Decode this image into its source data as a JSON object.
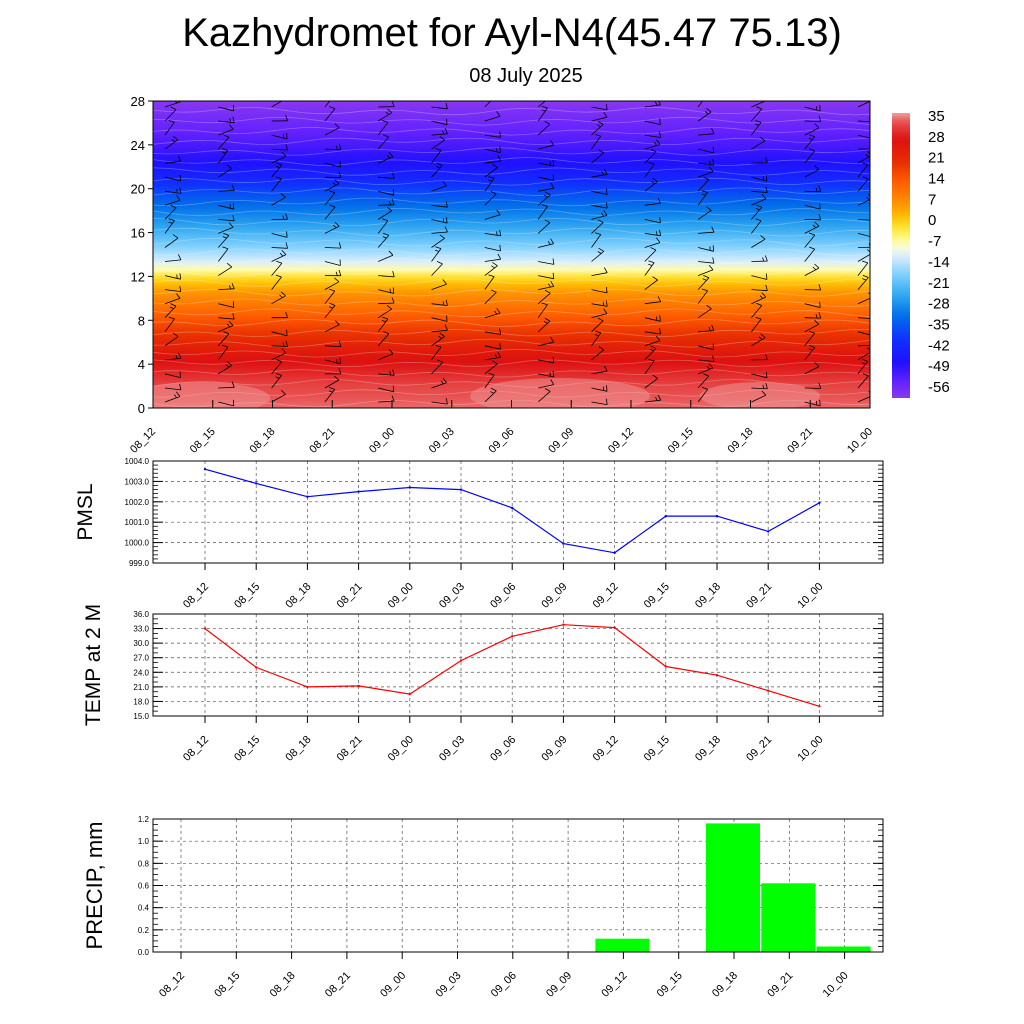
{
  "title": "Kazhydromet for Ayl-N4(45.47 75.13)",
  "subtitle": "08 July 2025",
  "chart_data": [
    {
      "type": "heatmap",
      "name": "cross-section",
      "title": "",
      "xlabel": "",
      "ylabel": "",
      "x_labels": [
        "08_12",
        "08_15",
        "08_18",
        "08_21",
        "09_00",
        "09_03",
        "09_06",
        "09_09",
        "09_12",
        "09_15",
        "09_18",
        "09_21",
        "10_00"
      ],
      "y_ticks": [
        0,
        4,
        8,
        12,
        16,
        20,
        24,
        28
      ],
      "ylim": [
        0,
        28
      ],
      "colorbar": {
        "labels": [
          "35",
          "28",
          "21",
          "14",
          "7",
          "0",
          "-7",
          "-14",
          "-21",
          "-28",
          "-35",
          "-42",
          "-49",
          "-56"
        ],
        "range": [
          -60,
          37
        ],
        "stops": [
          {
            "v": 37,
            "c": "#f0a0a0"
          },
          {
            "v": 34,
            "c": "#e85050"
          },
          {
            "v": 28,
            "c": "#dd1010"
          },
          {
            "v": 20,
            "c": "#e83000"
          },
          {
            "v": 14,
            "c": "#ff5a00"
          },
          {
            "v": 7,
            "c": "#ff8c00"
          },
          {
            "v": 2,
            "c": "#ffbb00"
          },
          {
            "v": -3,
            "c": "#ffee40"
          },
          {
            "v": -8,
            "c": "#ffffd0"
          },
          {
            "v": -12,
            "c": "#d8ecff"
          },
          {
            "v": -18,
            "c": "#80d0ff"
          },
          {
            "v": -25,
            "c": "#30a8f0"
          },
          {
            "v": -32,
            "c": "#0070e8"
          },
          {
            "v": -40,
            "c": "#1030ff"
          },
          {
            "v": -48,
            "c": "#2010ff"
          },
          {
            "v": -54,
            "c": "#6020ff"
          },
          {
            "v": -60,
            "c": "#8838f0"
          }
        ]
      },
      "level_temperature": [
        {
          "level": 0,
          "value": 35
        },
        {
          "level": 2,
          "value": 33
        },
        {
          "level": 5,
          "value": 26
        },
        {
          "level": 8,
          "value": 15
        },
        {
          "level": 10.5,
          "value": 6
        },
        {
          "level": 12,
          "value": -2
        },
        {
          "level": 13,
          "value": -10
        },
        {
          "level": 14.5,
          "value": -17
        },
        {
          "level": 17,
          "value": -27
        },
        {
          "level": 19.5,
          "value": -36
        },
        {
          "level": 21.5,
          "value": -45
        },
        {
          "level": 24,
          "value": -52
        },
        {
          "level": 28,
          "value": -60
        }
      ],
      "wind_barbs": "present"
    },
    {
      "type": "line",
      "name": "pmsl",
      "title": "",
      "xlabel": "",
      "ylabel": "PMSL",
      "categories": [
        "08_12",
        "08_15",
        "08_18",
        "08_21",
        "09_00",
        "09_03",
        "09_06",
        "09_09",
        "09_12",
        "09_15",
        "09_18",
        "09_21",
        "10_00"
      ],
      "values": [
        1003.6,
        1002.9,
        1002.25,
        1002.5,
        1002.7,
        1002.6,
        1001.7,
        999.95,
        999.5,
        1001.3,
        1001.3,
        1000.55,
        1001.95
      ],
      "ylim": [
        999.0,
        1004.0
      ],
      "y_ticks": [
        "999.0",
        "1000.0",
        "1001.0",
        "1002.0",
        "1003.0",
        "1004.0"
      ],
      "color": "#0000ff",
      "grid": true
    },
    {
      "type": "line",
      "name": "temp",
      "title": "",
      "xlabel": "",
      "ylabel": "TEMP at 2 M",
      "categories": [
        "08_12",
        "08_15",
        "08_18",
        "08_21",
        "09_00",
        "09_03",
        "09_06",
        "09_09",
        "09_12",
        "09_15",
        "09_18",
        "09_21",
        "10_00"
      ],
      "values": [
        33.0,
        25.0,
        21.0,
        21.2,
        19.5,
        26.4,
        31.4,
        33.8,
        33.2,
        25.2,
        23.4,
        20.2,
        17.0
      ],
      "ylim": [
        15.0,
        36.0
      ],
      "y_ticks": [
        "15.0",
        "18.0",
        "21.0",
        "24.0",
        "27.0",
        "30.0",
        "33.0",
        "36.0"
      ],
      "color": "#ff0000",
      "grid": true
    },
    {
      "type": "bar",
      "name": "precip",
      "title": "",
      "xlabel": "",
      "ylabel": "PRECIP, mm",
      "categories": [
        "08_12",
        "08_15",
        "08_18",
        "08_21",
        "09_00",
        "09_03",
        "09_06",
        "09_09",
        "09_12",
        "09_15",
        "09_18",
        "09_21",
        "10_00"
      ],
      "values": [
        0,
        0,
        0,
        0,
        0,
        0,
        0,
        0,
        0.12,
        0,
        1.16,
        0.62,
        0.05
      ],
      "ylim": [
        0.0,
        1.2
      ],
      "y_ticks": [
        "0.0",
        "0.2",
        "0.4",
        "0.6",
        "0.8",
        "1.0",
        "1.2"
      ],
      "color": "#00ff00",
      "grid": true
    }
  ]
}
